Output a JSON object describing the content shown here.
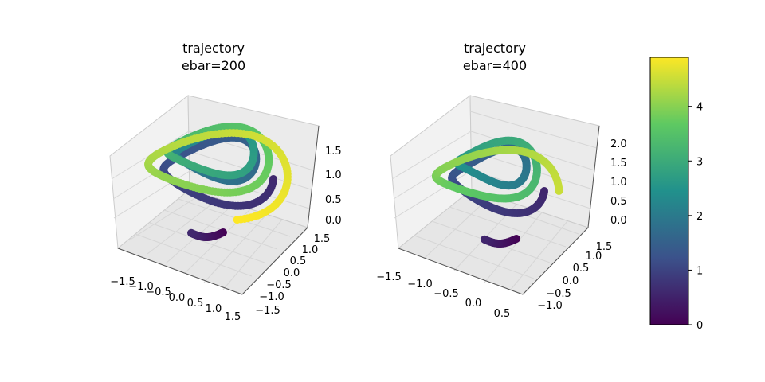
{
  "chart_data": [
    {
      "type": "scatter",
      "projection": "3d",
      "title_lines": [
        "trajectory",
        "ebar=200"
      ],
      "x_ticks": [
        "−1.5",
        "−1.0",
        "−0.5",
        "0.0",
        "0.5",
        "1.0",
        "1.5"
      ],
      "y_ticks": [
        "−1.5",
        "−1.0",
        "−0.5",
        "0.0",
        "0.5",
        "1.0",
        "1.5"
      ],
      "z_ticks": [
        "0.0",
        "0.5",
        "1.0",
        "1.5"
      ],
      "xlim": [
        -1.7,
        1.7
      ],
      "ylim": [
        -1.7,
        1.7
      ],
      "zlim": [
        -0.1,
        1.9
      ],
      "grid": true,
      "color_by": "time"
    },
    {
      "type": "scatter",
      "projection": "3d",
      "title_lines": [
        "trajectory",
        "ebar=400"
      ],
      "x_ticks": [
        "−1.5",
        "−1.0",
        "−0.5",
        "0.0",
        "0.5"
      ],
      "y_ticks": [
        "−1.0",
        "−0.5",
        "0.0",
        "0.5",
        "1.0",
        "1.5"
      ],
      "z_ticks": [
        "0.0",
        "0.5",
        "1.0",
        "1.5",
        "2.0"
      ],
      "xlim": [
        -1.7,
        0.7
      ],
      "ylim": [
        -1.2,
        1.6
      ],
      "zlim": [
        -0.1,
        2.3
      ],
      "grid": true,
      "color_by": "time"
    }
  ],
  "colorbar": {
    "colormap": "viridis",
    "range": [
      0,
      4.9
    ],
    "ticks": [
      "0",
      "1",
      "2",
      "3",
      "4"
    ],
    "tick_values": [
      0,
      1,
      2,
      3,
      4
    ]
  },
  "colors": {
    "viridis_stops": [
      "#440154",
      "#3b528b",
      "#21918c",
      "#5ec962",
      "#fde725"
    ],
    "grid": "#d9d9d9",
    "pane": "#f2f2f2"
  }
}
